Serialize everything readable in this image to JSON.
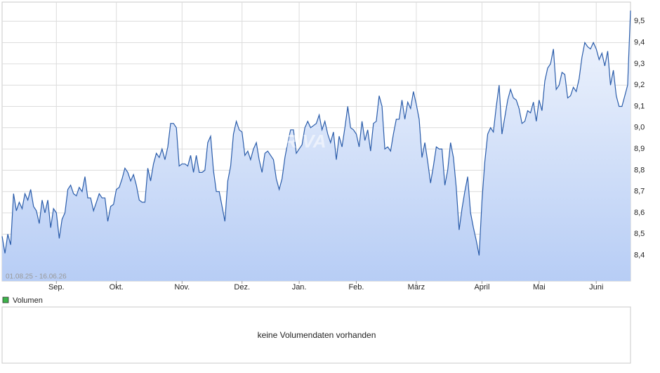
{
  "chart_data": {
    "type": "line",
    "date_range": "01.08.25 - 16.06.26",
    "watermark": "ARIVA",
    "color": "#2a5caa",
    "grid": true,
    "values": [
      8.49,
      8.41,
      8.5,
      8.45,
      8.69,
      8.61,
      8.65,
      8.62,
      8.69,
      8.66,
      8.71,
      8.63,
      8.61,
      8.55,
      8.66,
      8.6,
      8.66,
      8.53,
      8.62,
      8.6,
      8.48,
      8.57,
      8.6,
      8.71,
      8.73,
      8.69,
      8.68,
      8.72,
      8.7,
      8.77,
      8.67,
      8.67,
      8.61,
      8.65,
      8.69,
      8.67,
      8.67,
      8.56,
      8.63,
      8.64,
      8.71,
      8.72,
      8.76,
      8.81,
      8.79,
      8.75,
      8.78,
      8.73,
      8.66,
      8.65,
      8.65,
      8.81,
      8.75,
      8.83,
      8.88,
      8.86,
      8.9,
      8.85,
      8.91,
      9.02,
      9.02,
      9.0,
      8.82,
      8.83,
      8.83,
      8.82,
      8.87,
      8.79,
      8.87,
      8.79,
      8.79,
      8.8,
      8.93,
      8.96,
      8.8,
      8.7,
      8.7,
      8.63,
      8.56,
      8.75,
      8.82,
      8.97,
      9.03,
      8.99,
      8.98,
      8.87,
      8.89,
      8.85,
      8.9,
      8.93,
      8.85,
      8.79,
      8.88,
      8.89,
      8.87,
      8.85,
      8.76,
      8.71,
      8.76,
      8.86,
      8.93,
      8.99,
      8.99,
      8.88,
      8.9,
      8.92,
      9.0,
      9.03,
      9.0,
      9.01,
      9.02,
      9.06,
      8.99,
      9.03,
      8.97,
      8.93,
      8.98,
      8.85,
      8.96,
      8.91,
      9.0,
      9.1,
      9.0,
      8.99,
      8.97,
      8.91,
      9.03,
      8.94,
      8.99,
      8.89,
      9.02,
      9.03,
      9.15,
      9.1,
      8.9,
      8.91,
      8.89,
      8.97,
      9.04,
      9.04,
      9.13,
      9.04,
      9.12,
      9.09,
      9.17,
      9.11,
      9.04,
      8.86,
      8.93,
      8.84,
      8.74,
      8.82,
      8.91,
      8.9,
      8.9,
      8.73,
      8.8,
      8.93,
      8.86,
      8.72,
      8.52,
      8.62,
      8.7,
      8.77,
      8.6,
      8.53,
      8.47,
      8.4,
      8.66,
      8.84,
      8.97,
      9.0,
      8.98,
      9.1,
      9.2,
      8.97,
      9.05,
      9.13,
      9.18,
      9.14,
      9.13,
      9.09,
      9.02,
      9.03,
      9.08,
      9.07,
      9.12,
      9.03,
      9.13,
      9.08,
      9.22,
      9.28,
      9.3,
      9.37,
      9.18,
      9.2,
      9.26,
      9.25,
      9.14,
      9.15,
      9.19,
      9.17,
      9.23,
      9.33,
      9.4,
      9.38,
      9.37,
      9.4,
      9.37,
      9.32,
      9.35,
      9.29,
      9.36,
      9.2,
      9.27,
      9.15,
      9.1,
      9.1,
      9.15,
      9.2,
      9.55
    ],
    "xlim": [
      0,
      220
    ],
    "xticks": [
      {
        "value": 19,
        "label": "Sep."
      },
      {
        "value": 40,
        "label": "Okt."
      },
      {
        "value": 63,
        "label": "Nov."
      },
      {
        "value": 84,
        "label": "Dez."
      },
      {
        "value": 104,
        "label": "Jan."
      },
      {
        "value": 124,
        "label": "Feb."
      },
      {
        "value": 145,
        "label": "März"
      },
      {
        "value": 168,
        "label": "April"
      },
      {
        "value": 188,
        "label": "Mai"
      },
      {
        "value": 208,
        "label": "Juni"
      }
    ],
    "ylim": [
      8.28,
      9.59
    ],
    "yticks": [
      {
        "value": 8.4,
        "label": "8,4"
      },
      {
        "value": 8.5,
        "label": "8,5"
      },
      {
        "value": 8.6,
        "label": "8,6"
      },
      {
        "value": 8.7,
        "label": "8,7"
      },
      {
        "value": 8.8,
        "label": "8,8"
      },
      {
        "value": 8.9,
        "label": "8,9"
      },
      {
        "value": 9.0,
        "label": "9,0"
      },
      {
        "value": 9.1,
        "label": "9,1"
      },
      {
        "value": 9.2,
        "label": "9,2"
      },
      {
        "value": 9.3,
        "label": "9,3"
      },
      {
        "value": 9.4,
        "label": "9,4"
      },
      {
        "value": 9.5,
        "label": "9,5"
      }
    ]
  },
  "volume": {
    "legend": "Volumen",
    "message": "keine Volumendaten vorhanden",
    "legend_color": "#3cb34a"
  }
}
